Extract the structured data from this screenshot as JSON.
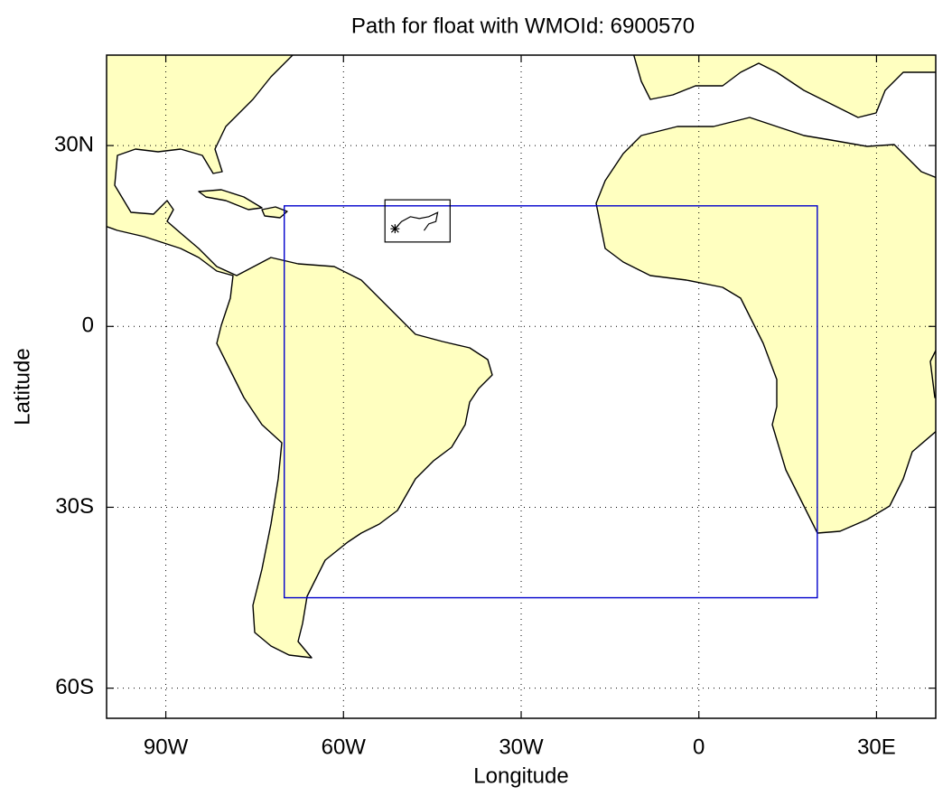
{
  "chart_data": {
    "type": "map",
    "title": "Path for float with WMOId: 6900570",
    "xlabel": "Longitude",
    "ylabel": "Latitude",
    "xlim": [
      -100,
      40
    ],
    "ylim": [
      -65,
      45
    ],
    "xticks": [
      {
        "value": -90,
        "label": "90W"
      },
      {
        "value": -60,
        "label": "60W"
      },
      {
        "value": -30,
        "label": "30W"
      },
      0,
      {
        "value": 30,
        "label": "30E"
      }
    ],
    "yticks": [
      {
        "value": 30,
        "label": "30N"
      },
      0,
      {
        "value": -30,
        "label": "30S"
      },
      {
        "value": -60,
        "label": "60S"
      }
    ],
    "grid": true,
    "region": {
      "lon": [
        -70,
        20
      ],
      "lat": [
        -45,
        20
      ],
      "color": "#0000cc"
    },
    "inset_box": {
      "lon": [
        -53,
        -42
      ],
      "lat": [
        14,
        21
      ]
    },
    "float_track": {
      "lon": [
        -51.3,
        -50.2,
        -48.7,
        -47.2,
        -45.6,
        -44.1,
        -44.4,
        -45.6,
        -46.4
      ],
      "lat": [
        16.2,
        17.4,
        18.2,
        17.9,
        18.2,
        18.9,
        17.4,
        17.0,
        15.9
      ]
    },
    "land_color": "#ffffc0"
  }
}
